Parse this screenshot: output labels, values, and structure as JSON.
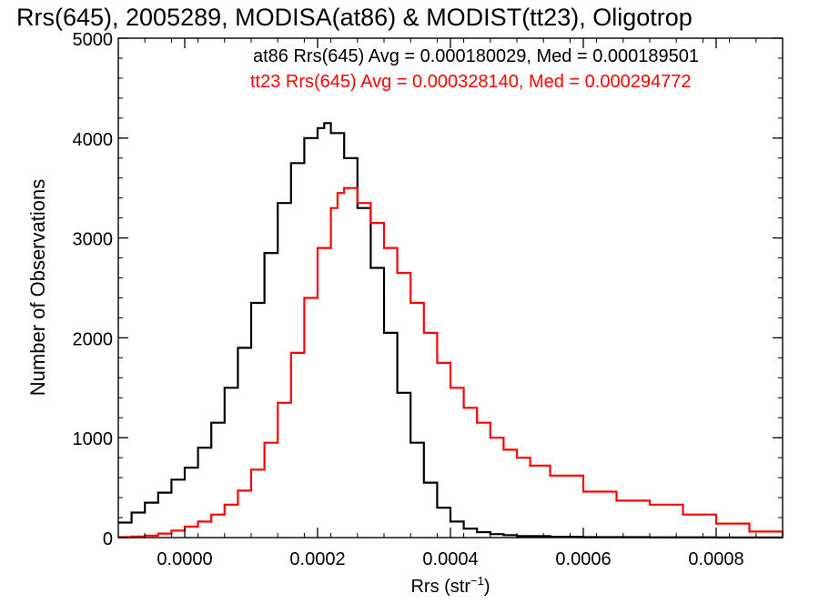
{
  "chart_data": {
    "type": "histogram-step",
    "title": "Rrs(645), 2005289, MODISA(at86) & MODIST(tt23), Oligotrop",
    "xlabel_prefix": "Rrs (str",
    "xlabel_exponent": "−1",
    "xlabel_suffix": ")",
    "ylabel": "Number of Observations",
    "xlim": [
      -0.0001,
      0.0009
    ],
    "ylim": [
      0,
      5000
    ],
    "x_ticks": [
      0.0,
      0.0002,
      0.0004,
      0.0006,
      0.0008
    ],
    "x_tick_labels": [
      "0.0000",
      "0.0002",
      "0.0004",
      "0.0006",
      "0.0008"
    ],
    "y_ticks": [
      0,
      1000,
      2000,
      3000,
      4000,
      5000
    ],
    "y_tick_labels": [
      "0",
      "1000",
      "2000",
      "3000",
      "4000",
      "5000"
    ],
    "grid": false,
    "legend_placement": "top-right",
    "series": [
      {
        "name": "at86 Rrs(645) Avg = 0.000180029, Med = 0.000189501",
        "color": "#000000",
        "x": [
          -0.0001,
          -8e-05,
          -6e-05,
          -4e-05,
          -2e-05,
          0.0,
          2e-05,
          4e-05,
          6e-05,
          8e-05,
          0.0001,
          0.00012,
          0.00014,
          0.00016,
          0.00018,
          0.0002,
          0.00021,
          0.00022,
          0.00024,
          0.00026,
          0.00028,
          0.0003,
          0.00032,
          0.00034,
          0.00036,
          0.00038,
          0.0004,
          0.00042,
          0.00044,
          0.00046,
          0.00048,
          0.0005,
          0.00055,
          0.0006,
          0.0007,
          0.0008,
          0.0009
        ],
        "y": [
          150,
          250,
          350,
          450,
          580,
          700,
          900,
          1150,
          1500,
          1900,
          2350,
          2850,
          3350,
          3750,
          4000,
          4100,
          4150,
          4050,
          3800,
          3300,
          2700,
          2050,
          1450,
          950,
          550,
          300,
          160,
          90,
          55,
          35,
          25,
          15,
          8,
          5,
          3,
          2,
          1
        ]
      },
      {
        "name": "tt23 Rrs(645) Avg = 0.000328140, Med = 0.000294772",
        "color": "#ff0000",
        "x": [
          -0.0001,
          -8e-05,
          -6e-05,
          -4e-05,
          -2e-05,
          0.0,
          2e-05,
          4e-05,
          6e-05,
          8e-05,
          0.0001,
          0.00012,
          0.00014,
          0.00016,
          0.00018,
          0.0002,
          0.00022,
          0.00023,
          0.00024,
          0.00026,
          0.00028,
          0.0003,
          0.00032,
          0.00034,
          0.00036,
          0.00038,
          0.0004,
          0.00042,
          0.00044,
          0.00046,
          0.00048,
          0.0005,
          0.00052,
          0.00055,
          0.0006,
          0.00065,
          0.0007,
          0.00075,
          0.0008,
          0.00085,
          0.0009
        ],
        "y": [
          5,
          10,
          20,
          40,
          70,
          110,
          160,
          230,
          330,
          470,
          680,
          950,
          1350,
          1850,
          2400,
          2900,
          3300,
          3450,
          3500,
          3350,
          3150,
          2900,
          2650,
          2350,
          2050,
          1750,
          1500,
          1300,
          1150,
          1000,
          880,
          800,
          720,
          620,
          460,
          370,
          330,
          230,
          140,
          60,
          20
        ]
      }
    ]
  }
}
